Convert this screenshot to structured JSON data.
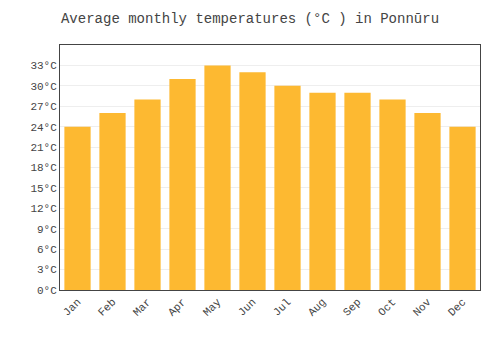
{
  "chart_data": {
    "type": "bar",
    "title": "Average monthly temperatures (°C ) in Ponnūru",
    "categories": [
      "Jan",
      "Feb",
      "Mar",
      "Apr",
      "May",
      "Jun",
      "Jul",
      "Aug",
      "Sep",
      "Oct",
      "Nov",
      "Dec"
    ],
    "values": [
      24.0,
      26.0,
      28.0,
      31.0,
      33.0,
      32.0,
      30.0,
      29.0,
      29.0,
      28.0,
      26.0,
      24.0
    ],
    "color": "#FDB931",
    "ylim": [
      0,
      36
    ],
    "yticks": [
      {
        "value": 0,
        "label": "0°C"
      },
      {
        "value": 3,
        "label": "3°C"
      },
      {
        "value": 6,
        "label": "6°C"
      },
      {
        "value": 9,
        "label": "9°C"
      },
      {
        "value": 12,
        "label": "12°C"
      },
      {
        "value": 15,
        "label": "15°C"
      },
      {
        "value": 18,
        "label": "18°C"
      },
      {
        "value": 21,
        "label": "21°C"
      },
      {
        "value": 24,
        "label": "24°C"
      },
      {
        "value": 27,
        "label": "27°C"
      },
      {
        "value": 30,
        "label": "30°C"
      },
      {
        "value": 33,
        "label": "33°C"
      }
    ],
    "grid": true
  }
}
